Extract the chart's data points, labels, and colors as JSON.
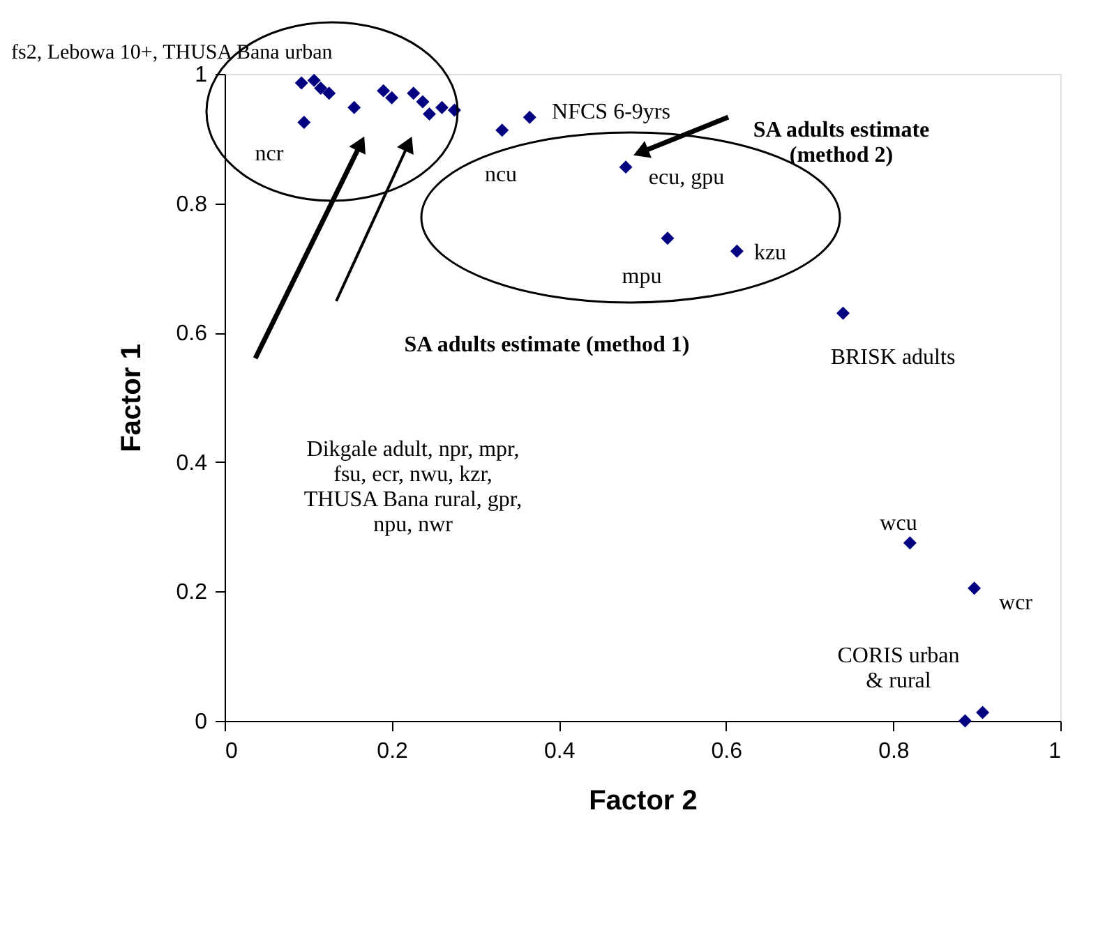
{
  "chart_data": {
    "type": "scatter",
    "xlabel": "Factor 2",
    "ylabel": "Factor 1",
    "x": [
      0.092,
      0.107,
      0.115,
      0.125,
      0.095,
      0.155,
      0.19,
      0.2,
      0.226,
      0.237,
      0.245,
      0.26,
      0.275,
      0.332,
      0.365,
      0.48,
      0.53,
      0.613,
      0.74,
      0.82,
      0.897,
      0.886,
      0.907
    ],
    "series": [
      {
        "color": "#000080",
        "values": [
          0.986,
          0.99,
          0.978,
          0.97,
          0.925,
          0.948,
          0.974,
          0.963,
          0.97,
          0.957,
          0.938,
          0.948,
          0.944,
          0.913,
          0.933,
          0.856,
          0.746,
          0.726,
          0.63,
          0.275,
          0.205,
          0.0,
          0.013
        ]
      }
    ],
    "marker": "diamond",
    "xlim": [
      0,
      1
    ],
    "ylim": [
      0,
      1
    ],
    "xticks": [
      0,
      0.2,
      0.4,
      0.6,
      0.8,
      1
    ],
    "yticks": [
      0,
      0.2,
      0.4,
      0.6,
      0.8,
      1
    ],
    "grid": false,
    "annotations": [
      "fs2, Lebowa 10+, THUSA Bana urban",
      "ncr",
      "ncu",
      "NFCS 6-9yrs",
      "ecu, gpu",
      "mpu",
      "kzu",
      "BRISK adults",
      "wcu",
      "wcr",
      "CORIS urban\n& rural",
      "SA adults estimate\n(method 2)",
      "SA adults estimate (method 1)",
      "Dikgale adult, npr, mpr,\nfsu, ecr, nwu, kzr,\nTHUSA Bana rural, gpr,\nnpu, nwr"
    ]
  }
}
